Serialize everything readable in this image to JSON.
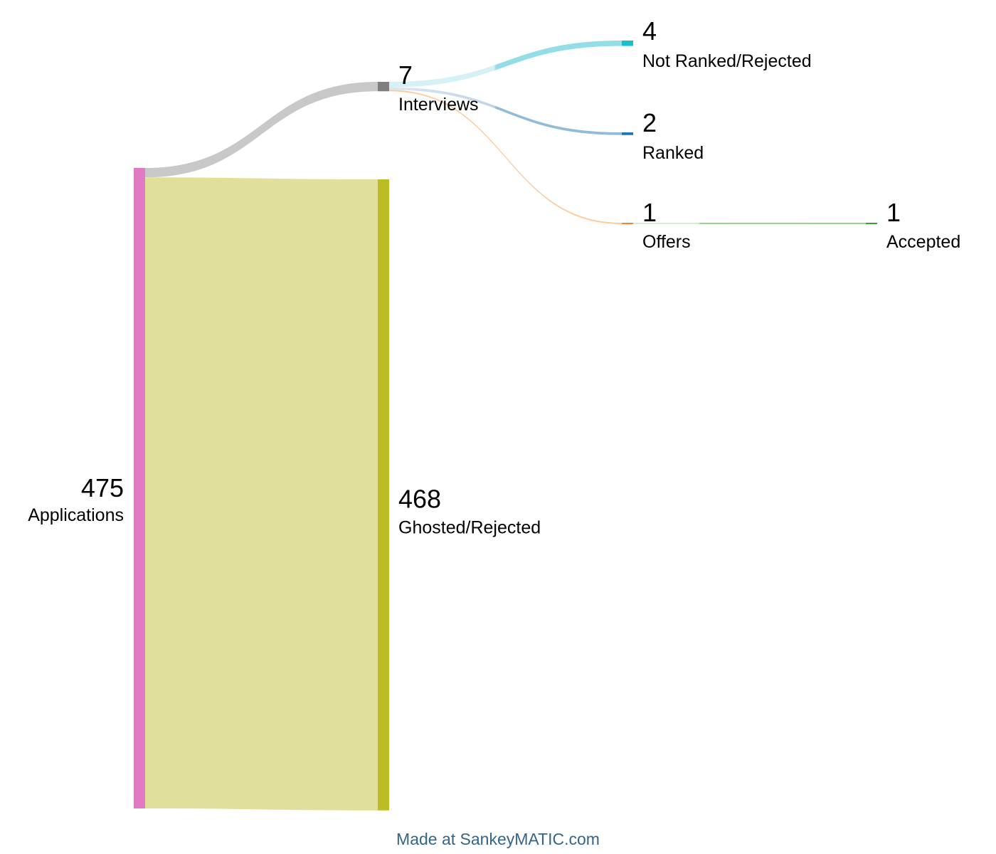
{
  "diagram": {
    "type": "sankey",
    "nodes": [
      {
        "id": "applications",
        "name": "Applications",
        "value": 475,
        "color": "#e07ac3"
      },
      {
        "id": "interviews",
        "name": "Interviews",
        "value": 7,
        "color": "#7f7f7f"
      },
      {
        "id": "ghosted",
        "name": "Ghosted/Rejected",
        "value": 468,
        "color": "#bcbd22"
      },
      {
        "id": "not_ranked",
        "name": "Not Ranked/Rejected",
        "value": 4,
        "color": "#17becf"
      },
      {
        "id": "ranked",
        "name": "Ranked",
        "value": 2,
        "color": "#1f77b4"
      },
      {
        "id": "offers",
        "name": "Offers",
        "value": 1,
        "color": "#ff7f0e"
      },
      {
        "id": "accepted",
        "name": "Accepted",
        "value": 1,
        "color": "#2ca02c"
      }
    ],
    "flows": [
      {
        "source": "applications",
        "target": "interviews",
        "value": 7
      },
      {
        "source": "applications",
        "target": "ghosted",
        "value": 468
      },
      {
        "source": "interviews",
        "target": "not_ranked",
        "value": 4
      },
      {
        "source": "interviews",
        "target": "ranked",
        "value": 2
      },
      {
        "source": "interviews",
        "target": "offers",
        "value": 1
      },
      {
        "source": "offers",
        "target": "accepted",
        "value": 1
      }
    ]
  },
  "credit": "Made at SankeyMATIC.com"
}
